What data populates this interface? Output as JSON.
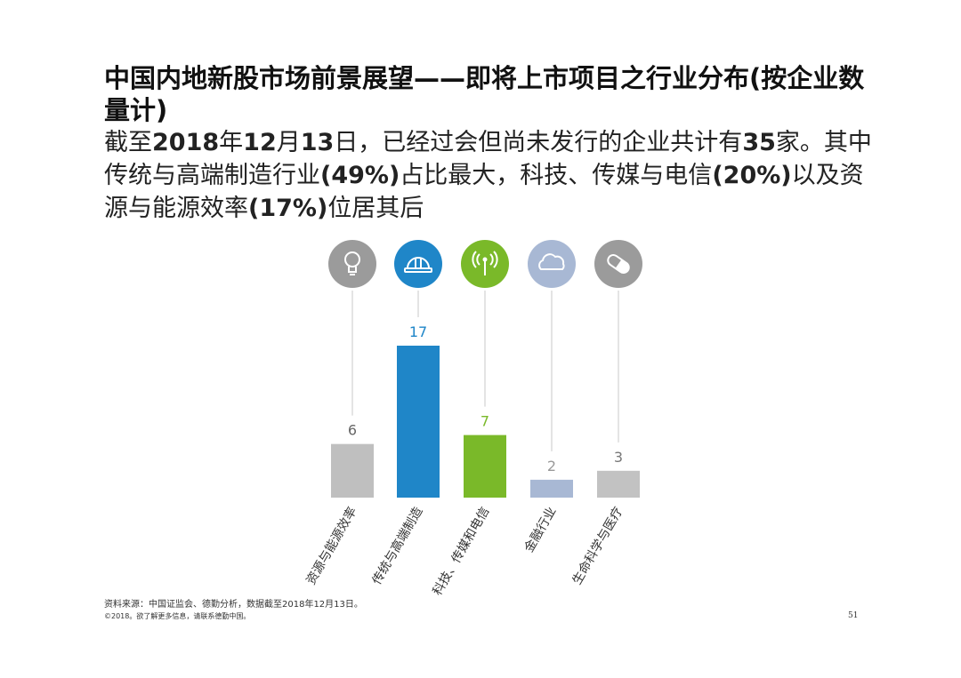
{
  "title": "中国内地新股市场前景展望——即将上市项目之行业分布(按企业数量计)",
  "subtitle": {
    "p1": "截至",
    "b1": "2018",
    "p2": "年",
    "b2": "12",
    "p3": "月",
    "b3": "13",
    "p4": "日，已经过会但尚未发行的企业共计有",
    "b4": "35",
    "p5": "家。其中传统与高端制造行业",
    "b5": "(49%)",
    "p6": "占比最大，科技、传媒与电信",
    "b6": "(20%)",
    "p7": "以及资源与能源效率",
    "b7": "(17%)",
    "p8": "位居其后"
  },
  "chart_data": {
    "type": "bar",
    "categories": [
      "资源与能源效率",
      "传统与高端制造",
      "科技、传媒和电信",
      "金融行业",
      "生命科学与医疗"
    ],
    "values": [
      6,
      17,
      7,
      2,
      3
    ],
    "colors": [
      "#bfbfbf",
      "#1f86c8",
      "#7ab929",
      "#a8b8d4",
      "#c2c2c2"
    ],
    "label_colors": [
      "#666666",
      "#1f86c8",
      "#7ab929",
      "#999999",
      "#777777"
    ],
    "icon_colors": [
      "#9b9b9b",
      "#1f86c8",
      "#7ab929",
      "#a8b8d4",
      "#9b9b9b"
    ],
    "icons": [
      "lightbulb-icon",
      "hard-hat-icon",
      "antenna-icon",
      "cloud-icon",
      "pill-icon"
    ],
    "ylim": [
      0,
      17
    ]
  },
  "footer": {
    "source": "资料来源：中国证监会、德勤分析，数据截至2018年12月13日。",
    "copyright": "©2018。欲了解更多信息，请联系德勤中国。",
    "page": "51"
  }
}
